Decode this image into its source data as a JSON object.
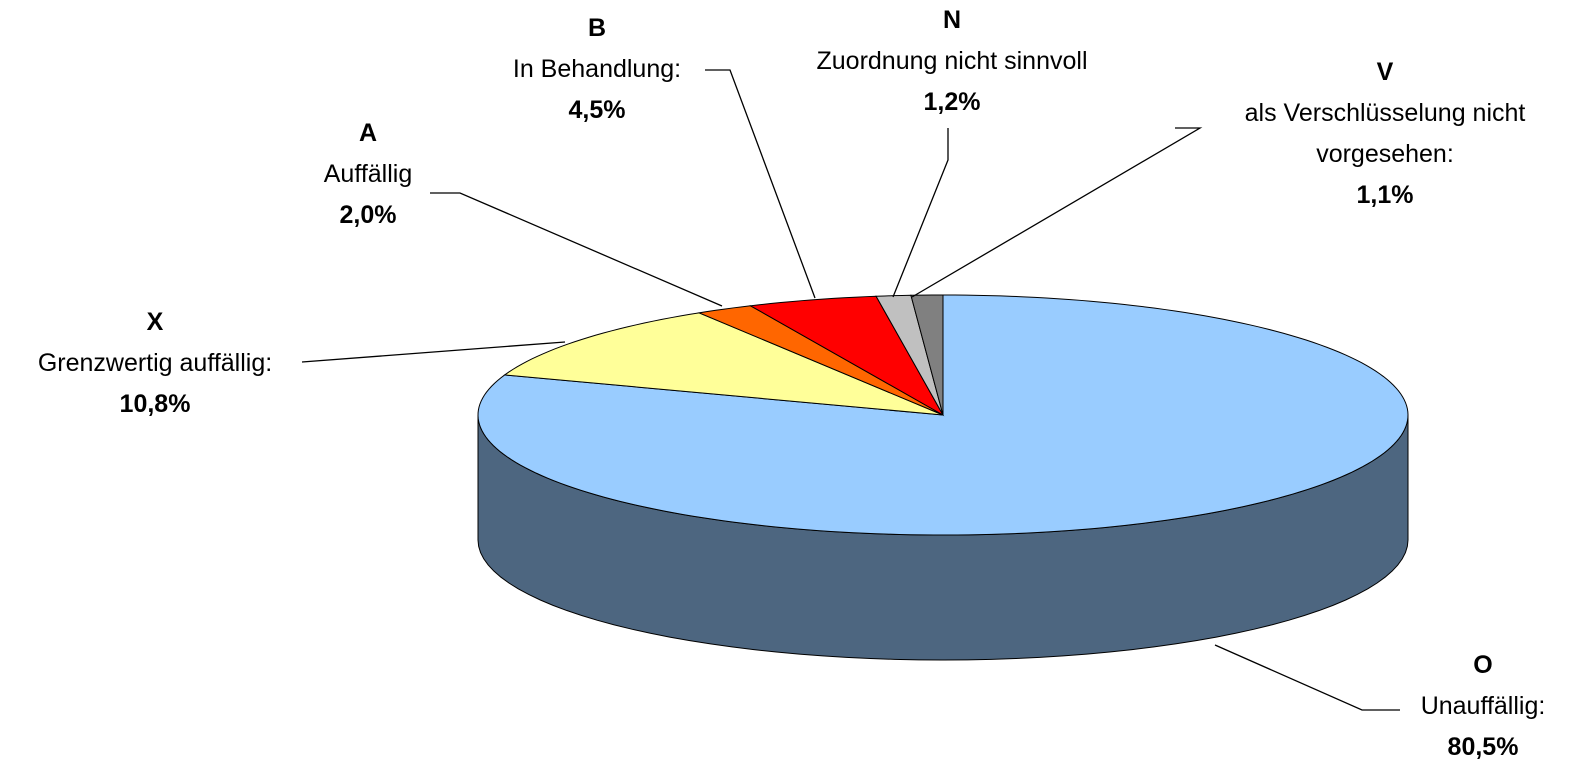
{
  "chart_data": {
    "type": "pie",
    "categories": [
      "O",
      "X",
      "A",
      "B",
      "N",
      "V"
    ],
    "descriptions": [
      "Unauffällig:",
      "Grenzwertig auffällig:",
      "Auffällig",
      "In Behandlung:",
      "Zuordnung nicht sinnvoll",
      "als Verschlüsselung nicht vorgesehen:"
    ],
    "values": [
      80.5,
      10.8,
      2.0,
      4.5,
      1.2,
      1.1
    ],
    "value_labels": [
      "80,5%",
      "10,8%",
      "2,0%",
      "4,5%",
      "1,2%",
      "1,1%"
    ],
    "colors": [
      "#99ccff",
      "#ffff99",
      "#ff6600",
      "#ff0000",
      "#c0c0c0",
      "#808080"
    ]
  }
}
